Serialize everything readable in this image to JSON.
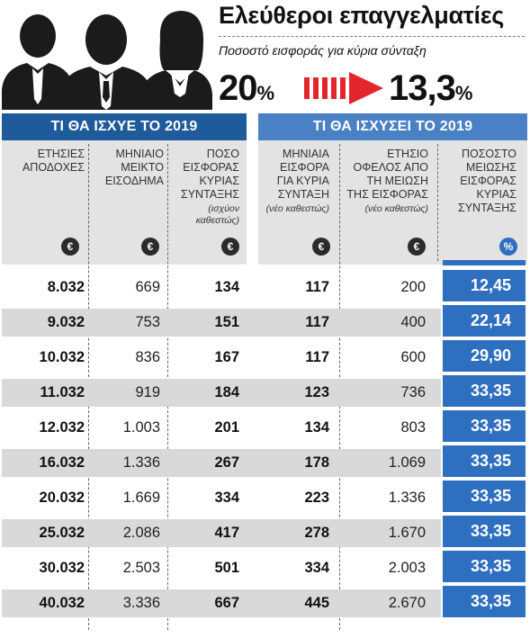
{
  "header": {
    "title": "Ελεύθεροι επαγγελματίες",
    "subtitle": "Ποσοστό εισφοράς για κύρια σύνταξη",
    "from_value": "20",
    "from_unit": "%",
    "to_value": "13,3",
    "to_unit": "%"
  },
  "sections": {
    "left": "ΤΙ ΘΑ ΙΣΧΥΕ ΤΟ 2019",
    "right": "ΤΙ ΘΑ ΙΣΧΥΣΕΙ ΤΟ 2019"
  },
  "columns": [
    {
      "lines": [
        "ΕΤΗΣΙΕΣ",
        "ΑΠΟΔΟΧΕΣ"
      ],
      "note": "",
      "unit": "€"
    },
    {
      "lines": [
        "ΜΗΝΙΑΙΟ",
        "ΜΕΙΚΤΟ",
        "ΕΙΣΟΔΗΜΑ"
      ],
      "note": "",
      "unit": "€"
    },
    {
      "lines": [
        "ΠΟΣΟ",
        "ΕΙΣΦΟΡΑΣ",
        "ΚΥΡΙΑΣ",
        "ΣΥΝΤΑΞΗΣ"
      ],
      "note": "(ισχύον καθεστώς)",
      "unit": "€"
    },
    {
      "lines": [
        "ΜΗΝΙΑΙΑ",
        "ΕΙΣΦΟΡΑ",
        "ΓΙΑ ΚΥΡΙΑ",
        "ΣΥΝΤΑΞΗ"
      ],
      "note": "(νέο καθεστώς)",
      "unit": "€"
    },
    {
      "lines": [
        "ΕΤΗΣΙΟ",
        "ΟΦΕΛΟΣ ΑΠΟ",
        "ΤΗ ΜΕΙΩΣΗ",
        "ΤΗΣ ΕΙΣΦΟΡΑΣ"
      ],
      "note": "(νέο καθεστώς)",
      "unit": "€"
    },
    {
      "lines": [
        "ΠΟΣΟΣΤΟ",
        "ΜΕΙΩΣΗΣ",
        "ΕΙΣΦΟΡΑΣ",
        "ΚΥΡΙΑΣ",
        "ΣΥΝΤΑΞΗΣ"
      ],
      "note": "",
      "unit": "%"
    }
  ],
  "rows": [
    [
      "8.032",
      "669",
      "134",
      "117",
      "200",
      "12,45"
    ],
    [
      "9.032",
      "753",
      "151",
      "117",
      "400",
      "22,14"
    ],
    [
      "10.032",
      "836",
      "167",
      "117",
      "600",
      "29,90"
    ],
    [
      "11.032",
      "919",
      "184",
      "123",
      "736",
      "33,35"
    ],
    [
      "12.032",
      "1.003",
      "201",
      "134",
      "803",
      "33,35"
    ],
    [
      "16.032",
      "1.336",
      "267",
      "178",
      "1.069",
      "33,35"
    ],
    [
      "20.032",
      "1.669",
      "334",
      "223",
      "1.336",
      "33,35"
    ],
    [
      "25.032",
      "2.086",
      "417",
      "278",
      "1.670",
      "33,35"
    ],
    [
      "30.032",
      "2.503",
      "501",
      "334",
      "2.003",
      "33,35"
    ],
    [
      "40.032",
      "3.336",
      "667",
      "445",
      "2.670",
      "33,35"
    ]
  ],
  "colors": {
    "left_header": "#1f5a9a",
    "right_header": "#4a80c4",
    "highlight_column": "#2f6fbf",
    "arrow": "#e3262b",
    "alt_row": "#d9d9d9"
  },
  "icons": [
    "people-silhouettes-icon",
    "red-arrow-icon",
    "euro-icon",
    "percent-icon"
  ]
}
